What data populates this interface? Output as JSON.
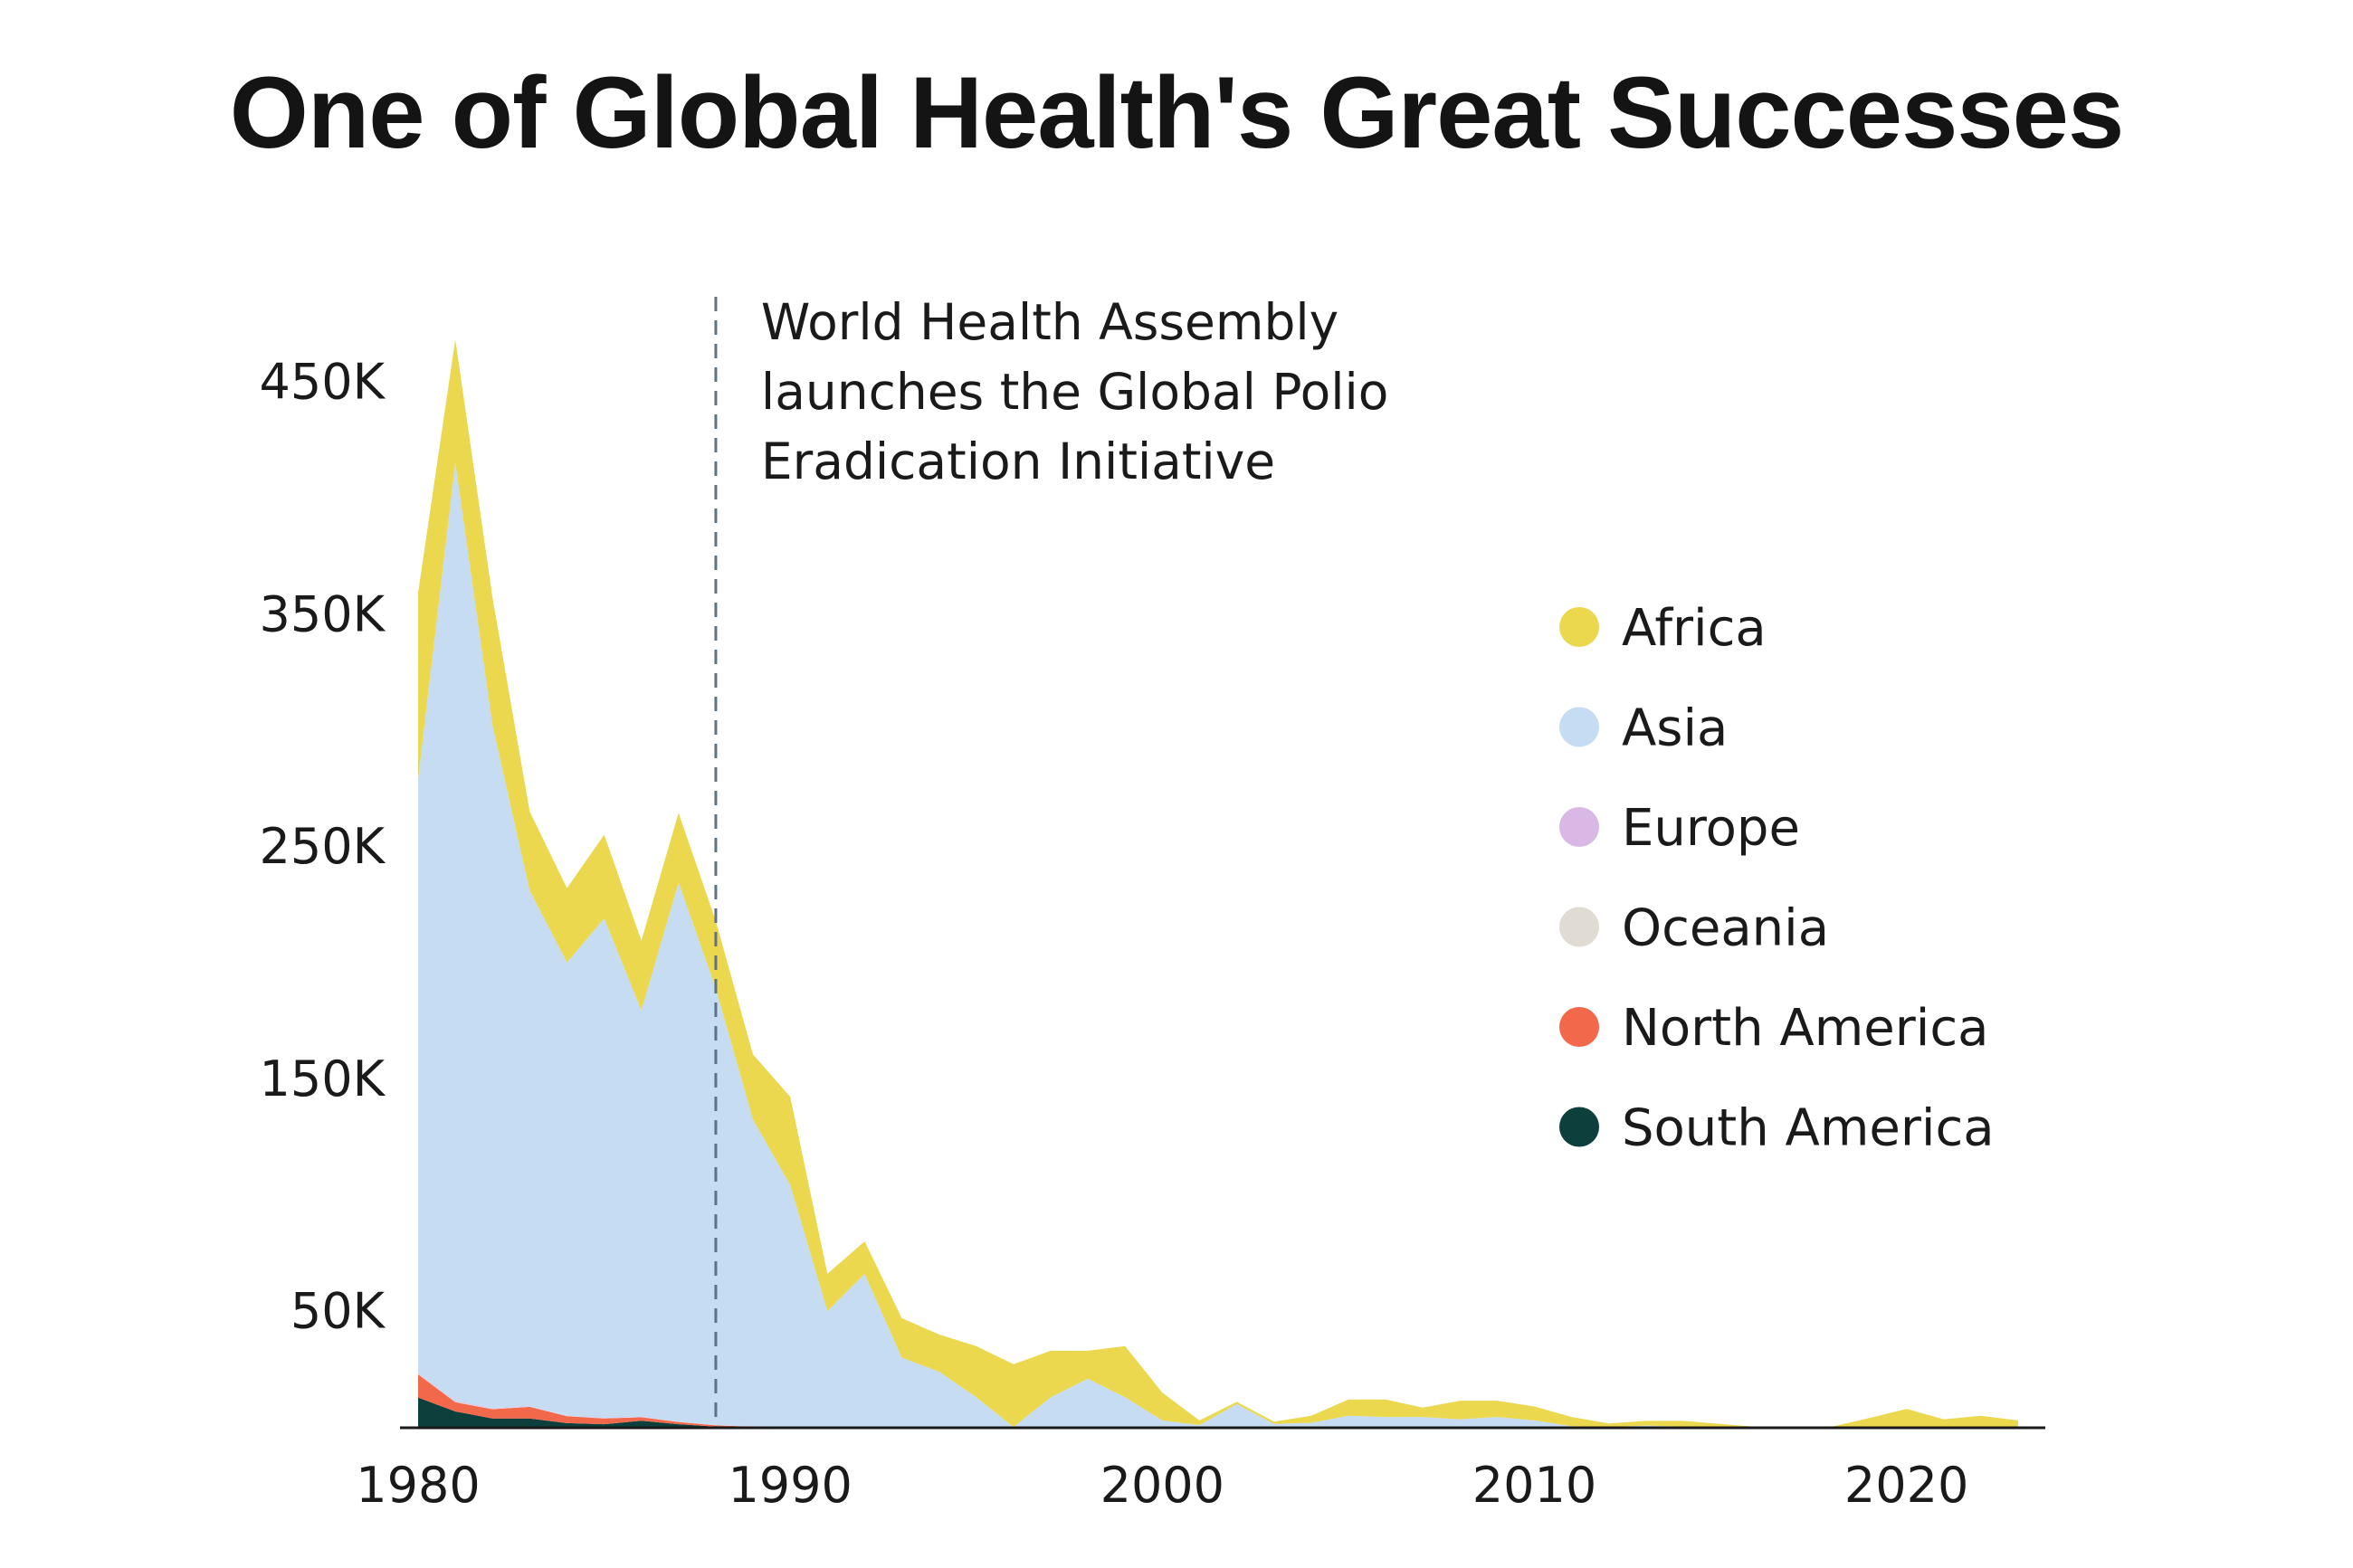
{
  "chart_data": {
    "type": "area",
    "stacked": true,
    "title": "One of Global Health's Great Successes",
    "xlabel": "",
    "ylabel": "",
    "xlim": [
      1980,
      2023
    ],
    "ylim": [
      0,
      490000
    ],
    "x_ticks": [
      1980,
      1990,
      2000,
      2010,
      2020
    ],
    "y_ticks": [
      {
        "value": 50000,
        "label": "50K"
      },
      {
        "value": 150000,
        "label": "150K"
      },
      {
        "value": 250000,
        "label": "250K"
      },
      {
        "value": 350000,
        "label": "350K"
      },
      {
        "value": 450000,
        "label": "450K"
      }
    ],
    "grid": false,
    "legend_position": "right",
    "annotation": {
      "x": 1988,
      "lines": [
        "World Health Assembly",
        "launches the Global Polio",
        "Eradication Initiative"
      ]
    },
    "x": [
      1980,
      1981,
      1982,
      1983,
      1984,
      1985,
      1986,
      1987,
      1988,
      1989,
      1990,
      1991,
      1992,
      1993,
      1994,
      1995,
      1996,
      1997,
      1998,
      1999,
      2000,
      2001,
      2002,
      2003,
      2004,
      2005,
      2006,
      2007,
      2008,
      2009,
      2010,
      2011,
      2012,
      2013,
      2014,
      2015,
      2016,
      2017,
      2018,
      2019,
      2020,
      2021,
      2022,
      2023
    ],
    "series": [
      {
        "name": "South America",
        "color": "#0d3f3d",
        "values": [
          13000,
          7000,
          4000,
          4000,
          2000,
          1500,
          3000,
          1500,
          500,
          300,
          200,
          100,
          50,
          30,
          10,
          0,
          0,
          0,
          0,
          0,
          0,
          0,
          0,
          0,
          0,
          0,
          0,
          0,
          0,
          0,
          0,
          0,
          0,
          0,
          0,
          0,
          0,
          0,
          0,
          0,
          0,
          0,
          0,
          0
        ]
      },
      {
        "name": "North America",
        "color": "#f2684a",
        "values": [
          10000,
          4000,
          4000,
          5000,
          3000,
          2500,
          1500,
          1000,
          500,
          200,
          100,
          50,
          50,
          0,
          0,
          0,
          0,
          0,
          0,
          0,
          0,
          0,
          0,
          0,
          0,
          0,
          0,
          0,
          0,
          0,
          0,
          0,
          0,
          0,
          0,
          0,
          0,
          0,
          0,
          0,
          0,
          0,
          0,
          0
        ]
      },
      {
        "name": "Oceania",
        "color": "#e0dbd3",
        "values": [
          200,
          200,
          200,
          100,
          100,
          100,
          100,
          100,
          100,
          100,
          100,
          50,
          50,
          50,
          50,
          50,
          50,
          50,
          50,
          50,
          50,
          50,
          50,
          50,
          50,
          50,
          50,
          50,
          50,
          50,
          50,
          50,
          50,
          50,
          50,
          50,
          50,
          50,
          50,
          50,
          50,
          50,
          50,
          50
        ]
      },
      {
        "name": "Europe",
        "color": "#d9b8e6",
        "values": [
          300,
          300,
          300,
          200,
          200,
          200,
          100,
          100,
          100,
          100,
          100,
          100,
          100,
          100,
          100,
          100,
          100,
          100,
          100,
          100,
          100,
          100,
          100,
          100,
          100,
          100,
          100,
          100,
          100,
          100,
          100,
          100,
          100,
          100,
          100,
          100,
          100,
          100,
          100,
          100,
          100,
          100,
          100,
          100
        ]
      },
      {
        "name": "Asia",
        "color": "#c6dcf2",
        "values": [
          256000,
          404000,
          294000,
          222000,
          195000,
          215000,
          175000,
          232000,
          188000,
          132000,
          104000,
          50000,
          66000,
          30000,
          24000,
          13000,
          200,
          13000,
          21000,
          13000,
          3000,
          1000,
          10000,
          1500,
          2000,
          5000,
          4500,
          4500,
          3500,
          4500,
          3000,
          500,
          200,
          800,
          300,
          0,
          0,
          0,
          0,
          0,
          0,
          0,
          0,
          0
        ]
      },
      {
        "name": "Africa",
        "color": "#ecd84f",
        "values": [
          80000,
          53000,
          55000,
          34000,
          32000,
          36000,
          30000,
          30000,
          29000,
          28000,
          38000,
          16000,
          14000,
          17000,
          16000,
          22000,
          27000,
          20000,
          12000,
          22000,
          12000,
          2000,
          1000,
          1000,
          3000,
          7000,
          7500,
          4000,
          8000,
          7000,
          6000,
          4000,
          1500,
          2000,
          2500,
          1500,
          200,
          200,
          300,
          4000,
          8000,
          3500,
          5000,
          3000
        ]
      }
    ]
  }
}
